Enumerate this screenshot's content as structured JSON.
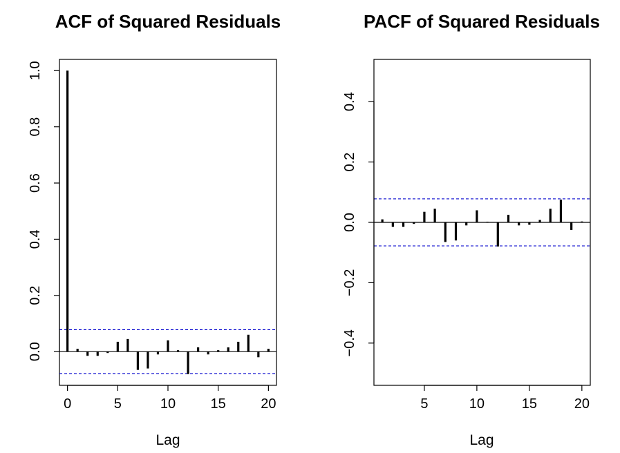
{
  "chart_data": [
    {
      "type": "bar",
      "title": "ACF of Squared Residuals",
      "xlabel": "Lag",
      "ylabel": "",
      "x": [
        0,
        1,
        2,
        3,
        4,
        5,
        6,
        7,
        8,
        9,
        10,
        11,
        12,
        13,
        14,
        15,
        16,
        17,
        18,
        19,
        20
      ],
      "values": [
        1.0,
        0.01,
        -0.015,
        -0.015,
        -0.005,
        0.035,
        0.045,
        -0.065,
        -0.06,
        -0.01,
        0.04,
        0.005,
        -0.08,
        0.015,
        -0.01,
        0.005,
        0.015,
        0.035,
        0.06,
        -0.02,
        0.01
      ],
      "ci": 0.078,
      "xlim": [
        -0.8,
        20.8
      ],
      "ylim": [
        -0.12,
        1.04
      ],
      "xticks": [
        0,
        5,
        10,
        15,
        20
      ],
      "yticks": [
        0.0,
        0.2,
        0.4,
        0.6,
        0.8,
        1.0
      ],
      "xtick_labels": [
        "0",
        "5",
        "10",
        "15",
        "20"
      ],
      "ytick_labels": [
        "0.0",
        "0.2",
        "0.4",
        "0.6",
        "0.8",
        "1.0"
      ],
      "grid": false,
      "colors": {
        "bars": "#000000",
        "ci": "#0000cc",
        "zero": "#000000"
      }
    },
    {
      "type": "bar",
      "title": "PACF of Squared Residuals",
      "xlabel": "Lag",
      "ylabel": "",
      "x": [
        1,
        2,
        3,
        4,
        5,
        6,
        7,
        8,
        9,
        10,
        11,
        12,
        13,
        14,
        15,
        16,
        17,
        18,
        19,
        20
      ],
      "values": [
        0.01,
        -0.015,
        -0.015,
        -0.005,
        0.035,
        0.045,
        -0.065,
        -0.06,
        -0.01,
        0.04,
        0.002,
        -0.08,
        0.025,
        -0.01,
        -0.008,
        0.008,
        0.045,
        0.075,
        -0.025,
        0.003
      ],
      "ci": 0.078,
      "xlim": [
        0.2,
        20.8
      ],
      "ylim": [
        -0.54,
        0.54
      ],
      "xticks": [
        5,
        10,
        15,
        20
      ],
      "yticks": [
        -0.4,
        -0.2,
        0.0,
        0.2,
        0.4
      ],
      "xtick_labels": [
        "5",
        "10",
        "15",
        "20"
      ],
      "ytick_labels": [
        "−0.4",
        "−0.2",
        "0.0",
        "0.2",
        "0.4"
      ],
      "grid": false,
      "colors": {
        "bars": "#000000",
        "ci": "#0000cc",
        "zero": "#000000"
      }
    }
  ]
}
